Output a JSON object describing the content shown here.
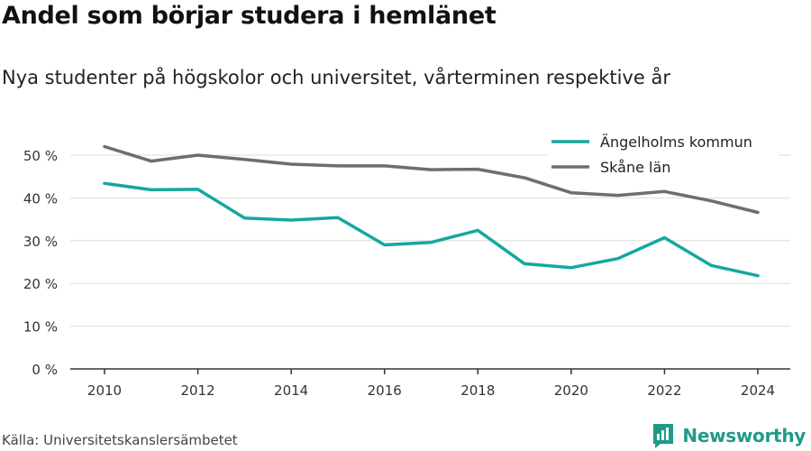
{
  "title": "Andel som börjar studera i hemlänet",
  "subtitle": "Nya studenter på högskolor och universitet, vårterminen respektive år",
  "source": "Källa: Universitetskanslersämbetet",
  "brand": {
    "name": "Newsworthy",
    "icon": "newsworthy-logo-icon",
    "color": "#1f9a8a"
  },
  "chart_data": {
    "type": "line",
    "x": [
      2010,
      2011,
      2012,
      2013,
      2014,
      2015,
      2016,
      2017,
      2018,
      2019,
      2020,
      2021,
      2022,
      2023,
      2024
    ],
    "x_ticks": [
      "2010",
      "2012",
      "2014",
      "2016",
      "2018",
      "2020",
      "2022",
      "2024"
    ],
    "y_ticks": [
      "0 %",
      "10 %",
      "20 %",
      "30 %",
      "40 %",
      "50 %"
    ],
    "ylim": [
      0,
      55
    ],
    "grid": true,
    "legend_position": "top-right",
    "series": [
      {
        "name": "Ängelholms kommun",
        "color": "#13a89e",
        "values": [
          43.4,
          41.9,
          42.0,
          35.3,
          34.8,
          35.4,
          29.0,
          29.6,
          32.4,
          24.6,
          23.7,
          25.8,
          30.7,
          24.2,
          21.8
        ]
      },
      {
        "name": "Skåne län",
        "color": "#6d6d72",
        "values": [
          52.0,
          48.6,
          50.0,
          49.0,
          47.9,
          47.5,
          47.5,
          46.6,
          46.7,
          44.7,
          41.2,
          40.6,
          41.5,
          39.3,
          36.6
        ]
      }
    ]
  }
}
